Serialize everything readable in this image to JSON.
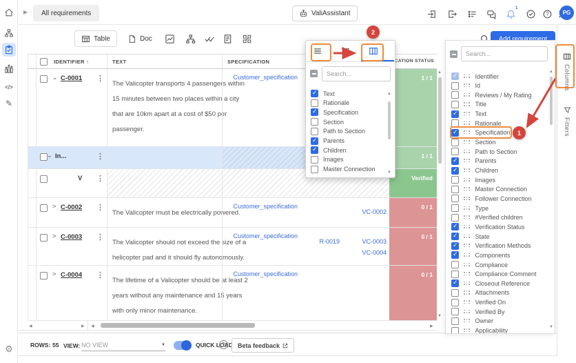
{
  "colors": {
    "accent": "#2e6be5",
    "link": "#3c6bd9",
    "status_green": "#a9d3ab",
    "status_green_dark": "#8cc68f",
    "status_red": "#dd9494",
    "row_selected": "#d8e7fa",
    "annotation_red": "#d5453d",
    "annotation_orange": "#ee8a3d"
  },
  "icons": {
    "kebab": "⋮",
    "chevron_down": "⌄",
    "chevron_right": ">",
    "sort_asc": "↑",
    "up": "▲",
    "down": "▼",
    "left": "◀",
    "right": "▶",
    "gear": "⚙",
    "pencil": "✎",
    "code": "</>",
    "help": "?",
    "more": "⋮",
    "collapse": "▶",
    "caret_down": "▼"
  },
  "sidebar": {
    "items": [
      {
        "name": "home"
      },
      {
        "name": "project-tree"
      },
      {
        "name": "requirements",
        "active": true
      },
      {
        "name": "analytics"
      },
      {
        "name": "scripting"
      },
      {
        "name": "edit"
      }
    ]
  },
  "topbar": {
    "tab": "All requirements",
    "assistant_label": "ValiAssistant",
    "notification_badge": "1",
    "avatar": "PG",
    "action_icons": [
      "import",
      "export",
      "tasks",
      "chat",
      "notifications",
      "verify-check",
      "help",
      "more"
    ]
  },
  "toolbar": {
    "views": [
      {
        "label": "Table",
        "active": true
      },
      {
        "label": "Doc",
        "active": false
      }
    ],
    "extra_icons": [
      "chart",
      "hierarchy",
      "double-check",
      "document",
      "matrix"
    ],
    "add_button": "Add requirement"
  },
  "table": {
    "headers": {
      "identifier": "IDENTIFIER",
      "text": "TEXT",
      "specification": "SPECIFICATION",
      "verification_status": "VERIFICATION STATUS"
    },
    "rows": [
      {
        "id": "C-0001",
        "kind": "req",
        "expand": "down",
        "text": [
          "The Valicopter transports 4 passengers within",
          "15 minutes between two places within a city",
          "that are 10km apart at a cost of $50 per",
          "passenger."
        ],
        "spec": "Customer_specification",
        "parents": [],
        "children": [],
        "status": "1 / 1",
        "status_color": "green"
      },
      {
        "id": "In...",
        "kind": "section",
        "expand": "down",
        "selected": true,
        "text": [],
        "spec": "",
        "parents": [],
        "children": [],
        "status": "1 / 1",
        "status_color": "green",
        "hatch": "partial"
      },
      {
        "id": "V",
        "kind": "sub",
        "expand": "",
        "text": [],
        "spec": "",
        "parents": [],
        "children": [],
        "status": "Verified",
        "status_color": "green-dark",
        "hatch": "full"
      },
      {
        "id": "C-0002",
        "kind": "req",
        "expand": "right",
        "text": [
          "The Valicopter must be electrically powered."
        ],
        "spec": "Customer_specification",
        "parents": [],
        "children": [
          "VC-0002"
        ],
        "status": "0 / 1",
        "status_color": "red"
      },
      {
        "id": "C-0003",
        "kind": "req",
        "expand": "right",
        "text": [
          "The Valicopter should not exceed the size of a",
          "helicopter pad and it should fly autonomously."
        ],
        "spec": "Customer_specification",
        "parents": [
          "R-0019"
        ],
        "children": [
          "VC-0003",
          "VC-0004"
        ],
        "status": "0 / 1",
        "status_color": "red"
      },
      {
        "id": "C-0004",
        "kind": "req",
        "expand": "right",
        "text": [
          "The lifetime of a Valicopter should be at least 2",
          "years without any maintenance and 15 years",
          "with only minor maintenance."
        ],
        "spec": "Customer_specification",
        "parents": [],
        "children": [],
        "status": "0 / 1",
        "status_color": "red"
      }
    ]
  },
  "column_popup": {
    "search_placeholder": "Search...",
    "items": [
      {
        "label": "Text",
        "checked": true
      },
      {
        "label": "Rationale",
        "checked": false
      },
      {
        "label": "Specification",
        "checked": true
      },
      {
        "label": "Section",
        "checked": false
      },
      {
        "label": "Path to Section",
        "checked": false
      },
      {
        "label": "Parents",
        "checked": true
      },
      {
        "label": "Children",
        "checked": true
      },
      {
        "label": "Images",
        "checked": false
      },
      {
        "label": "Master Connection",
        "checked": false
      }
    ]
  },
  "columns_panel": {
    "search_placeholder": "Search...",
    "items": [
      {
        "label": "Identifier",
        "checked": true,
        "disabled": true
      },
      {
        "label": "Id",
        "checked": false
      },
      {
        "label": "Reviews / My Rating",
        "checked": false
      },
      {
        "label": "Title",
        "checked": false
      },
      {
        "label": "Text",
        "checked": true
      },
      {
        "label": "Rationale",
        "checked": false
      },
      {
        "label": "Specification",
        "checked": true,
        "highlight": true
      },
      {
        "label": "Section",
        "checked": false
      },
      {
        "label": "Path to Section",
        "checked": false
      },
      {
        "label": "Parents",
        "checked": true
      },
      {
        "label": "Children",
        "checked": true
      },
      {
        "label": "Images",
        "checked": false
      },
      {
        "label": "Master Connection",
        "checked": false
      },
      {
        "label": "Follower Connection",
        "checked": false
      },
      {
        "label": "Type",
        "checked": false
      },
      {
        "label": "#Verified children",
        "checked": false
      },
      {
        "label": "Verification Status",
        "checked": true
      },
      {
        "label": "State",
        "checked": true
      },
      {
        "label": "Verification Methods",
        "checked": true
      },
      {
        "label": "Components",
        "checked": true
      },
      {
        "label": "Compliance",
        "checked": false
      },
      {
        "label": "Compliance Comment",
        "checked": false
      },
      {
        "label": "Closeout Reference",
        "checked": true
      },
      {
        "label": "Attachments",
        "checked": false
      },
      {
        "label": "Verified On",
        "checked": false
      },
      {
        "label": "Verified By",
        "checked": false
      },
      {
        "label": "Owner",
        "checked": false
      },
      {
        "label": "Applicability",
        "checked": false
      }
    ]
  },
  "side_tabs": [
    {
      "label": "Columns",
      "active": true
    },
    {
      "label": "Filters",
      "active": false
    }
  ],
  "footer": {
    "rows_label": "ROWS:",
    "rows_value": "55",
    "view_label": "VIEW:",
    "view_placeholder": "NO VIEW",
    "quick_load_label": "QUICK LOAD",
    "beta_label": "Beta feedback"
  },
  "annotations": {
    "step1": "1",
    "step2": "2"
  }
}
